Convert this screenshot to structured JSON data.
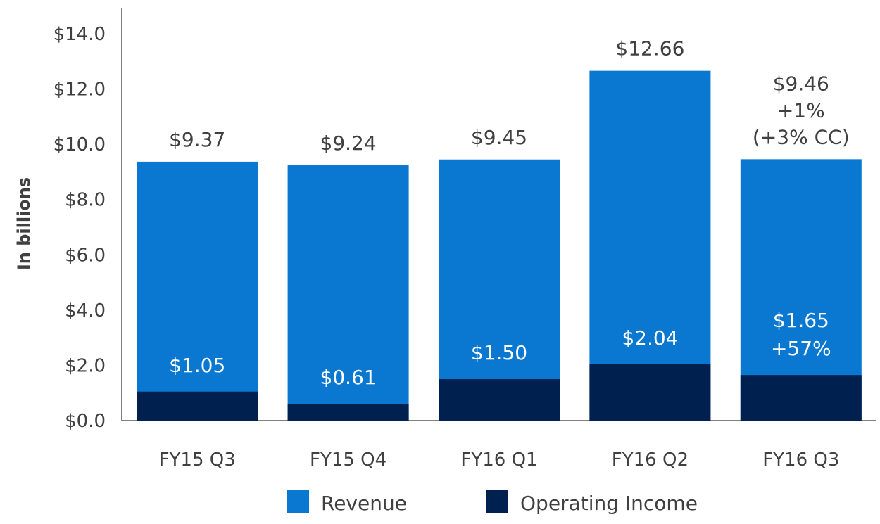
{
  "colors": {
    "revenue": "#0A77D0",
    "operating_income": "#002050",
    "text": "#404040",
    "axis": "#808080"
  },
  "chart_data": {
    "type": "bar",
    "ylabel": "In billions",
    "ylim": [
      0,
      14
    ],
    "yticks": [
      "$0.0",
      "$2.0",
      "$4.0",
      "$6.0",
      "$8.0",
      "$10.0",
      "$12.0",
      "$14.0"
    ],
    "categories": [
      "FY15 Q3",
      "FY15 Q4",
      "FY16 Q1",
      "FY16 Q2",
      "FY16 Q3"
    ],
    "series": [
      {
        "name": "Revenue",
        "values": [
          9.37,
          9.24,
          9.45,
          12.66,
          9.46
        ],
        "labels": [
          [
            "$9.37"
          ],
          [
            "$9.24"
          ],
          [
            "$9.45"
          ],
          [
            "$12.66"
          ],
          [
            "$9.46",
            "+1%",
            "(+3% CC)"
          ]
        ]
      },
      {
        "name": "Operating Income",
        "values": [
          1.05,
          0.61,
          1.5,
          2.04,
          1.65
        ],
        "labels": [
          [
            "$1.05"
          ],
          [
            "$0.61"
          ],
          [
            "$1.50"
          ],
          [
            "$2.04"
          ],
          [
            "$1.65",
            "+57%"
          ]
        ]
      }
    ],
    "legend": {
      "position": "bottom",
      "items": [
        "Revenue",
        "Operating Income"
      ]
    },
    "grid": false
  }
}
